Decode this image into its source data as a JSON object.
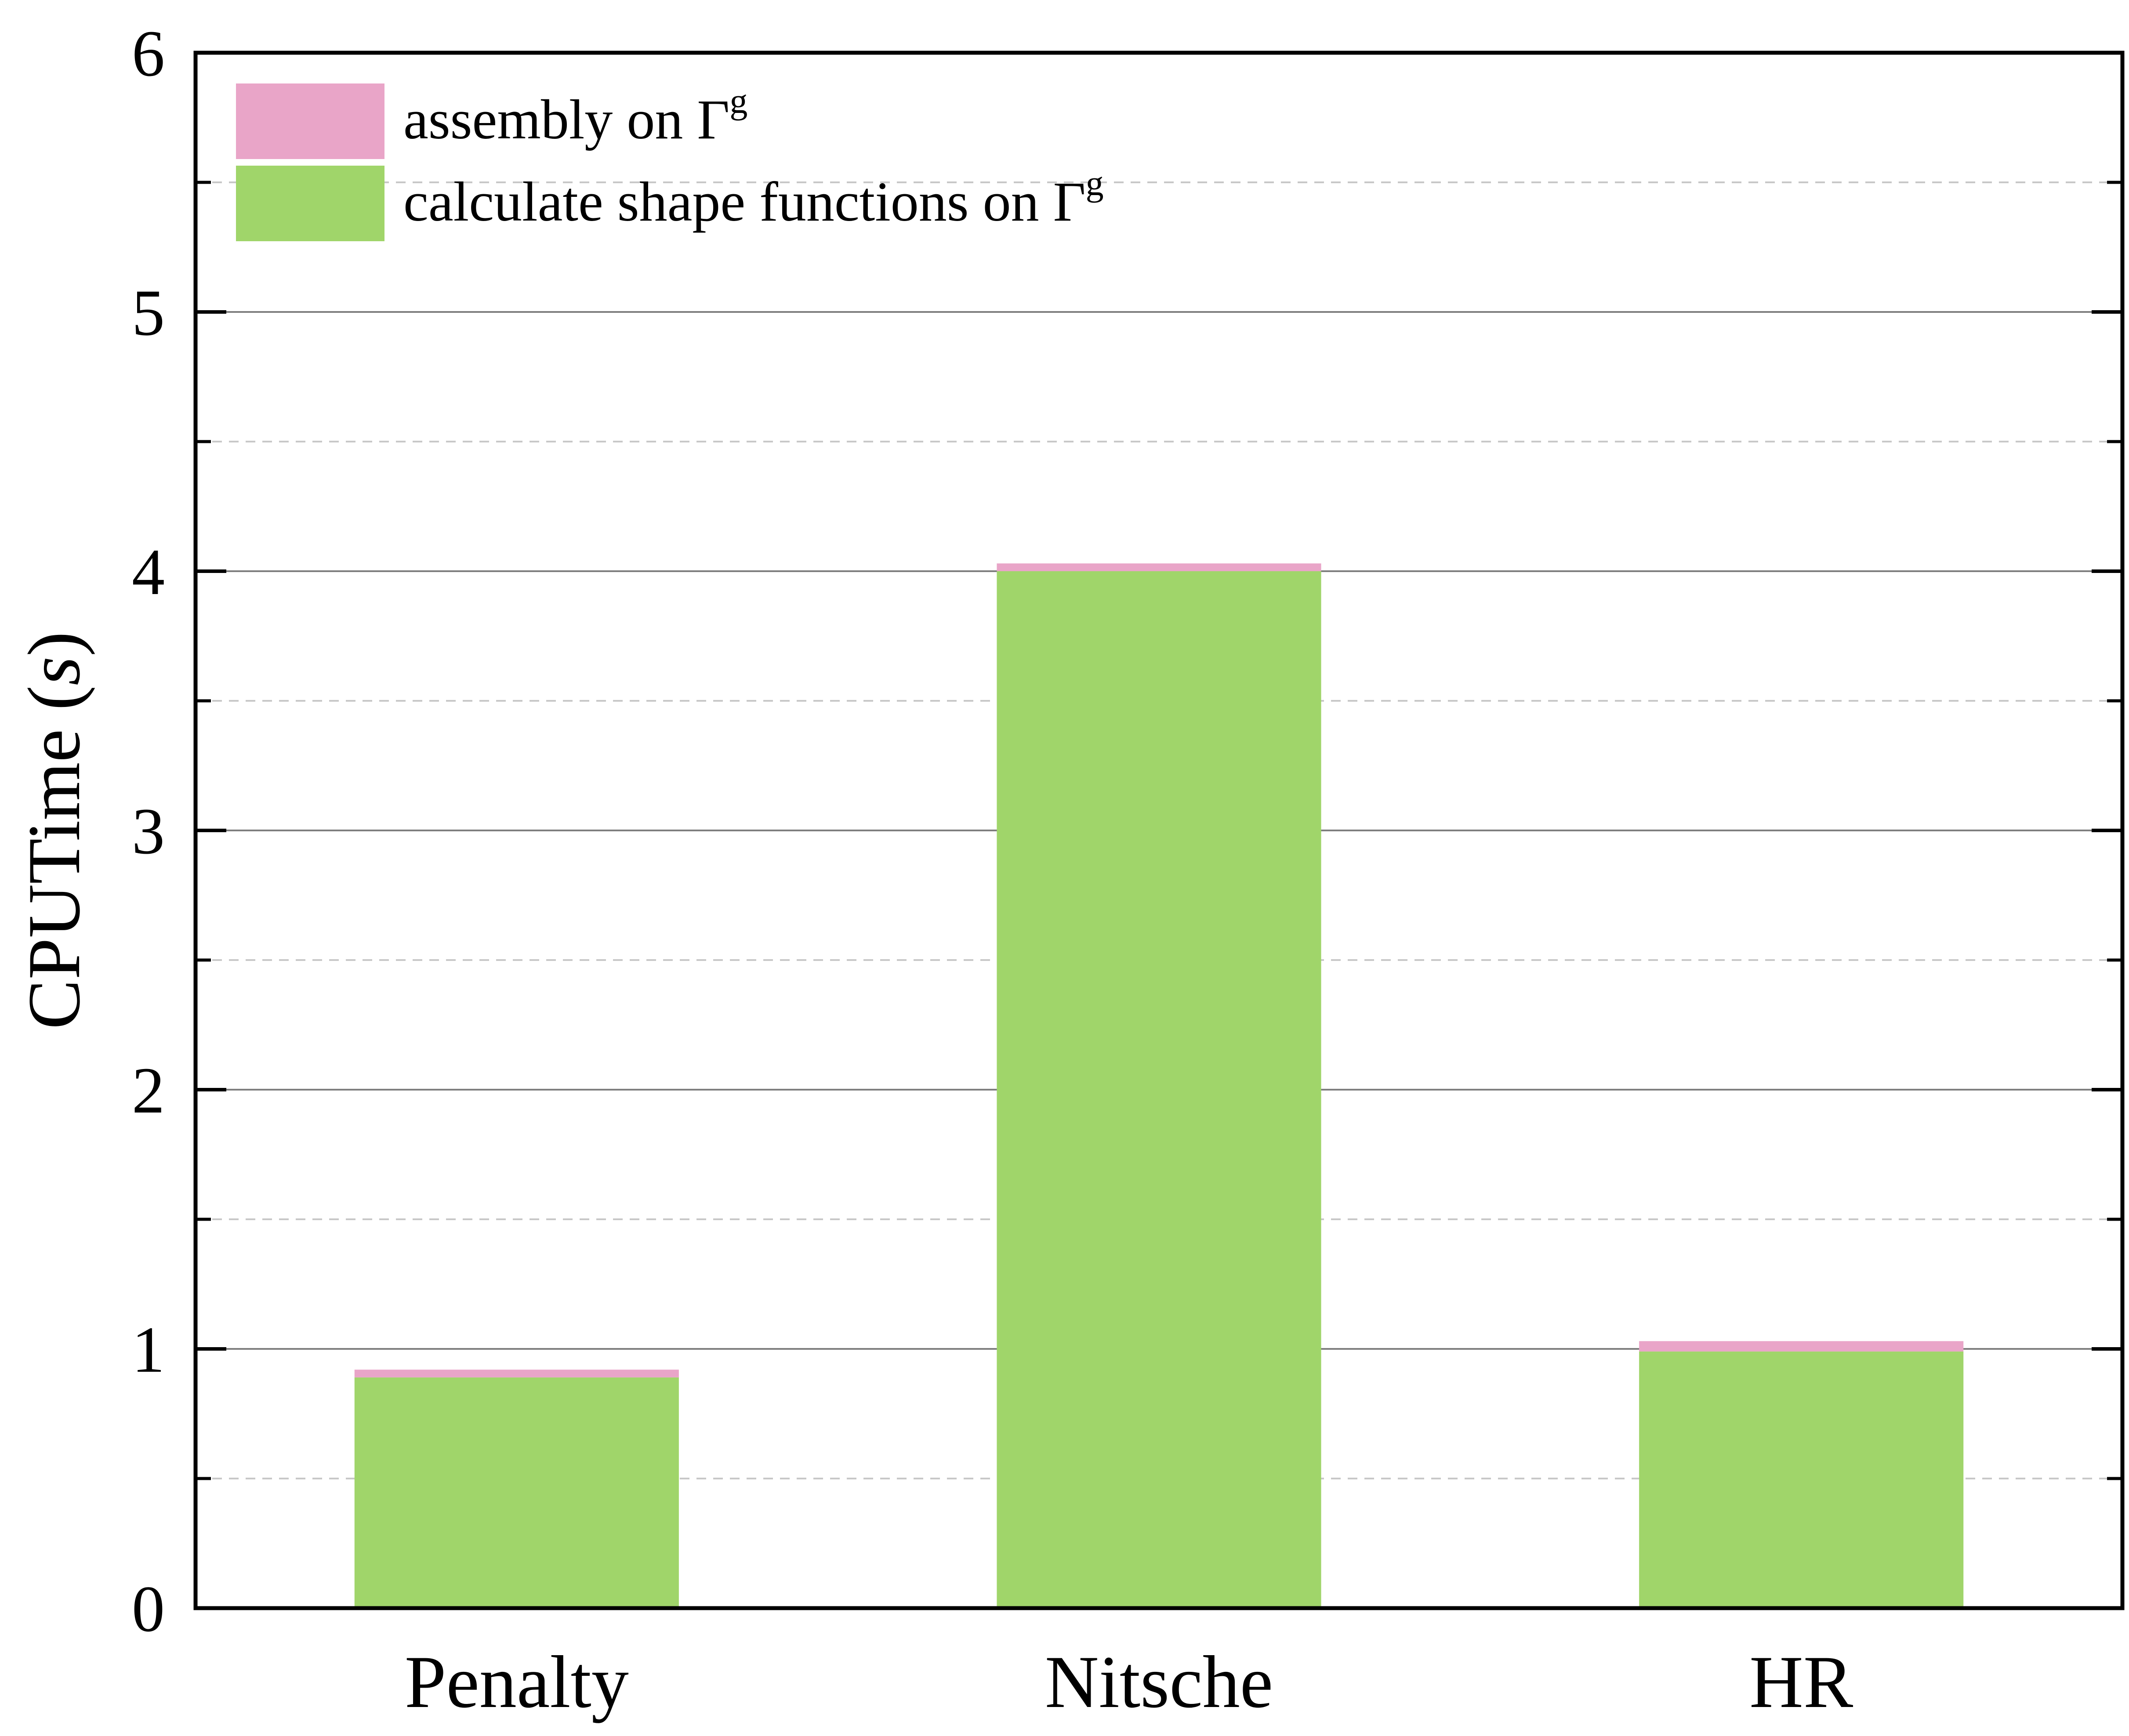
{
  "chart_data": {
    "type": "bar",
    "stacked": true,
    "categories": [
      "Penalty",
      "Nitsche",
      "HR"
    ],
    "series": [
      {
        "name": "calculate shape functions on Γg",
        "values": [
          0.89,
          4.0,
          0.99
        ],
        "color": "#a0d56a",
        "legend": {
          "text": "calculate shape functions on Γ",
          "sup": "g"
        }
      },
      {
        "name": "assembly on Γg",
        "values": [
          0.03,
          0.03,
          0.04
        ],
        "color": "#e9a5c8",
        "legend": {
          "text": "assembly on Γ",
          "sup": "g"
        }
      }
    ],
    "ylabel": {
      "text": "CPUTime (",
      "italic": "s",
      "end": ")"
    },
    "xlabel": "",
    "ylim": [
      0,
      6
    ],
    "yticks": [
      "0",
      "1",
      "2",
      "3",
      "4",
      "5",
      "6"
    ],
    "ytick_values": [
      0,
      1,
      2,
      3,
      4,
      5,
      6
    ],
    "minor_step": 0.5,
    "grid": {
      "major": "solid",
      "minor": "dashed"
    },
    "legend_position": "top-left"
  }
}
